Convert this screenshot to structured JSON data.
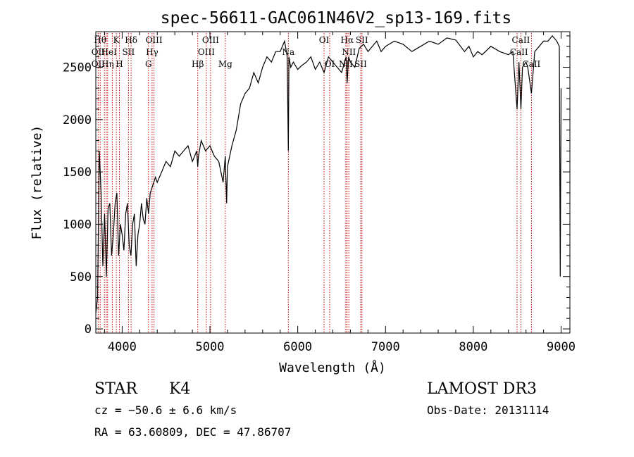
{
  "chart_data": {
    "type": "line",
    "title": "spec-56611-GAC061N46V2_sp13-169.fits",
    "xlabel": "Wavelength (Å)",
    "ylabel": "Flux (relative)",
    "xlim": [
      3700,
      9100
    ],
    "ylim": [
      -40,
      2840
    ],
    "xticks": [
      4000,
      5000,
      6000,
      7000,
      8000,
      9000
    ],
    "yticks": [
      0,
      500,
      1000,
      1500,
      2000,
      2500
    ],
    "series": [
      {
        "name": "flux",
        "x": [
          3700,
          3720,
          3740,
          3760,
          3780,
          3800,
          3820,
          3840,
          3860,
          3880,
          3900,
          3920,
          3940,
          3960,
          3980,
          4000,
          4020,
          4040,
          4060,
          4080,
          4100,
          4120,
          4140,
          4160,
          4180,
          4200,
          4220,
          4240,
          4260,
          4280,
          4300,
          4320,
          4340,
          4360,
          4380,
          4400,
          4450,
          4500,
          4550,
          4600,
          4650,
          4700,
          4750,
          4800,
          4850,
          4861,
          4870,
          4900,
          4950,
          5000,
          5050,
          5100,
          5150,
          5175,
          5190,
          5200,
          5250,
          5300,
          5350,
          5400,
          5450,
          5500,
          5550,
          5600,
          5650,
          5700,
          5750,
          5800,
          5850,
          5880,
          5893,
          5900,
          5920,
          5950,
          6000,
          6050,
          6100,
          6150,
          6200,
          6250,
          6300,
          6350,
          6400,
          6450,
          6500,
          6550,
          6563,
          6580,
          6600,
          6650,
          6700,
          6750,
          6800,
          6850,
          6900,
          6950,
          7000,
          7100,
          7200,
          7300,
          7400,
          7500,
          7600,
          7700,
          7800,
          7900,
          7950,
          8000,
          8050,
          8100,
          8200,
          8300,
          8400,
          8450,
          8498,
          8520,
          8542,
          8560,
          8600,
          8620,
          8662,
          8700,
          8750,
          8800,
          8850,
          8900,
          8950,
          8980,
          8990,
          9000
        ],
        "values": [
          150,
          300,
          1700,
          1300,
          600,
          1100,
          500,
          1150,
          1200,
          700,
          900,
          1200,
          1300,
          700,
          1000,
          900,
          750,
          1100,
          1200,
          800,
          700,
          1000,
          1100,
          600,
          900,
          1000,
          1200,
          1050,
          1000,
          1250,
          1100,
          1300,
          1350,
          1400,
          1450,
          1400,
          1500,
          1600,
          1550,
          1700,
          1650,
          1700,
          1750,
          1600,
          1700,
          1550,
          1650,
          1800,
          1700,
          1750,
          1650,
          1600,
          1400,
          1650,
          1200,
          1550,
          1750,
          1900,
          2150,
          2250,
          2300,
          2450,
          2350,
          2500,
          2600,
          2550,
          2650,
          2650,
          2750,
          2600,
          1700,
          2600,
          2500,
          2550,
          2480,
          2520,
          2550,
          2600,
          2480,
          2550,
          2450,
          2600,
          2550,
          2500,
          2450,
          2600,
          2350,
          2600,
          2550,
          2500,
          2680,
          2720,
          2650,
          2700,
          2750,
          2650,
          2700,
          2750,
          2720,
          2650,
          2700,
          2750,
          2720,
          2780,
          2760,
          2650,
          2700,
          2600,
          2650,
          2620,
          2700,
          2650,
          2620,
          2650,
          2100,
          2550,
          2100,
          2500,
          2550,
          2500,
          2250,
          2650,
          2700,
          2750,
          2750,
          2800,
          2750,
          2700,
          500,
          2300
        ]
      }
    ],
    "line_color": "#000000",
    "marker_color": "#cc0000",
    "line_markers": [
      {
        "x": 3727,
        "labels": [
          "OII"
        ]
      },
      {
        "x": 3750,
        "labels": [
          "Hθ"
        ]
      },
      {
        "x": 3798,
        "labels": [
          "Hη"
        ]
      },
      {
        "x": 3820,
        "labels": [
          "HeI"
        ]
      },
      {
        "x": 3835,
        "labels": [
          "Hη"
        ]
      },
      {
        "x": 3889,
        "labels": [
          "HeI"
        ]
      },
      {
        "x": 3934,
        "labels": [
          "K"
        ]
      },
      {
        "x": 3969,
        "labels": [
          "H"
        ]
      },
      {
        "x": 4072,
        "labels": [
          "SII"
        ]
      },
      {
        "x": 4102,
        "labels": [
          "Hδ"
        ]
      },
      {
        "x": 4300,
        "labels": [
          "G"
        ]
      },
      {
        "x": 4341,
        "labels": [
          "Hγ"
        ]
      },
      {
        "x": 4363,
        "labels": [
          "OIII"
        ]
      },
      {
        "x": 4861,
        "labels": [
          "Hβ"
        ]
      },
      {
        "x": 4959,
        "labels": [
          "OIII"
        ]
      },
      {
        "x": 5007,
        "labels": [
          "OIII"
        ]
      },
      {
        "x": 5175,
        "labels": [
          "Mg"
        ]
      },
      {
        "x": 5893,
        "labels": [
          "Na"
        ]
      },
      {
        "x": 6300,
        "labels": [
          "OI"
        ]
      },
      {
        "x": 6364,
        "labels": [
          "OI"
        ]
      },
      {
        "x": 6548,
        "labels": [
          "NII"
        ]
      },
      {
        "x": 6563,
        "labels": [
          "Hα"
        ]
      },
      {
        "x": 6583,
        "labels": [
          "NII"
        ]
      },
      {
        "x": 6717,
        "labels": [
          "SII"
        ]
      },
      {
        "x": 6731,
        "labels": [
          "SII"
        ]
      },
      {
        "x": 8498,
        "labels": [
          "CaII"
        ]
      },
      {
        "x": 8542,
        "labels": [
          "CaII"
        ]
      },
      {
        "x": 8662,
        "labels": [
          "CaII"
        ]
      }
    ]
  },
  "info": {
    "class_label": "STAR",
    "subclass": "K4",
    "survey": "LAMOST DR3",
    "cz": "cz = −50.6 ± 6.6 km/s",
    "obs_date": "Obs-Date: 20131114",
    "coords": "RA =  63.60809, DEC =  47.86707"
  },
  "labels": {
    "title_row": [
      "Hθ",
      "K",
      "Hδ",
      "OIII",
      "OIII",
      "OI",
      "Hα",
      "SII",
      "CaII"
    ],
    "mid_row": [
      "OII",
      "HeI",
      "SII",
      "Hγ",
      "OIII",
      "Na",
      "NII",
      "CaII"
    ],
    "low_row": [
      "OII",
      "Hη",
      "H",
      "G",
      "Hβ",
      "Mg",
      "OI",
      "NII",
      "SII",
      "CaII"
    ]
  }
}
